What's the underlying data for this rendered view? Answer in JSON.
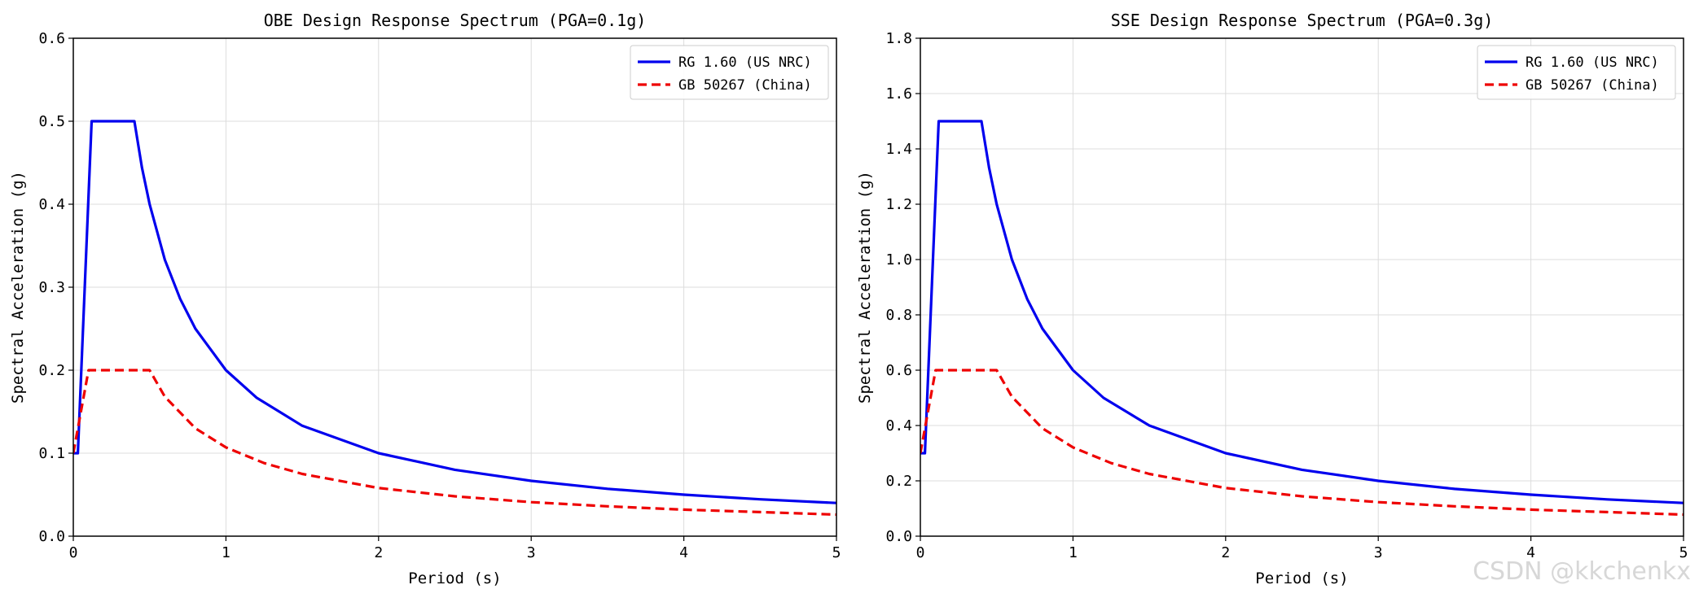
{
  "watermark": "CSDN @kkchenkx",
  "colors": {
    "rg": "#0000ee",
    "gb": "#ee0000",
    "grid": "#dcdcdc",
    "frame": "#000000"
  },
  "chart_data": [
    {
      "type": "line",
      "title": "OBE Design Response Spectrum (PGA=0.1g)",
      "xlabel": "Period (s)",
      "ylabel": "Spectral Acceleration (g)",
      "xlim": [
        0,
        5
      ],
      "ylim": [
        0,
        0.6
      ],
      "xticks": [
        0,
        1,
        2,
        3,
        4,
        5
      ],
      "xtick_labels": [
        "0",
        "1",
        "2",
        "3",
        "4",
        "5"
      ],
      "yticks": [
        0,
        0.1,
        0.2,
        0.3,
        0.4,
        0.5,
        0.6
      ],
      "ytick_labels": [
        "0.0",
        "0.1",
        "0.2",
        "0.3",
        "0.4",
        "0.5",
        "0.6"
      ],
      "grid": true,
      "legend_position": "top-right",
      "series": [
        {
          "name": "RG 1.60 (US NRC)",
          "style": "solid",
          "color": "#0000ee",
          "x": [
            0,
            0.03,
            0.12,
            0.4,
            0.45,
            0.5,
            0.6,
            0.7,
            0.8,
            1.0,
            1.2,
            1.5,
            2.0,
            2.5,
            3.0,
            3.5,
            4.0,
            4.5,
            5.0
          ],
          "y": [
            0.1,
            0.1,
            0.5,
            0.5,
            0.444,
            0.4,
            0.333,
            0.286,
            0.25,
            0.2,
            0.167,
            0.133,
            0.1,
            0.08,
            0.0667,
            0.0571,
            0.05,
            0.0444,
            0.04
          ]
        },
        {
          "name": "GB 50267 (China)",
          "style": "dashed",
          "color": "#ee0000",
          "x": [
            0,
            0.1,
            0.5,
            0.6,
            0.8,
            1.0,
            1.25,
            1.5,
            2.0,
            2.5,
            3.0,
            3.5,
            4.0,
            4.5,
            5.0
          ],
          "y": [
            0.1,
            0.2,
            0.2,
            0.168,
            0.13,
            0.107,
            0.088,
            0.075,
            0.058,
            0.048,
            0.041,
            0.036,
            0.032,
            0.029,
            0.026
          ]
        }
      ]
    },
    {
      "type": "line",
      "title": "SSE Design Response Spectrum (PGA=0.3g)",
      "xlabel": "Period (s)",
      "ylabel": "Spectral Acceleration (g)",
      "xlim": [
        0,
        5
      ],
      "ylim": [
        0,
        1.8
      ],
      "xticks": [
        0,
        1,
        2,
        3,
        4,
        5
      ],
      "xtick_labels": [
        "0",
        "1",
        "2",
        "3",
        "4",
        "5"
      ],
      "yticks": [
        0,
        0.2,
        0.4,
        0.6,
        0.8,
        1.0,
        1.2,
        1.4,
        1.6,
        1.8
      ],
      "ytick_labels": [
        "0.0",
        "0.2",
        "0.4",
        "0.6",
        "0.8",
        "1.0",
        "1.2",
        "1.4",
        "1.6",
        "1.8"
      ],
      "grid": true,
      "legend_position": "top-right",
      "series": [
        {
          "name": "RG 1.60 (US NRC)",
          "style": "solid",
          "color": "#0000ee",
          "x": [
            0,
            0.03,
            0.12,
            0.4,
            0.45,
            0.5,
            0.6,
            0.7,
            0.8,
            1.0,
            1.2,
            1.5,
            2.0,
            2.5,
            3.0,
            3.5,
            4.0,
            4.5,
            5.0
          ],
          "y": [
            0.3,
            0.3,
            1.5,
            1.5,
            1.333,
            1.2,
            1.0,
            0.857,
            0.75,
            0.6,
            0.5,
            0.4,
            0.3,
            0.24,
            0.2,
            0.171,
            0.15,
            0.133,
            0.12
          ]
        },
        {
          "name": "GB 50267 (China)",
          "style": "dashed",
          "color": "#ee0000",
          "x": [
            0,
            0.1,
            0.5,
            0.6,
            0.8,
            1.0,
            1.25,
            1.5,
            2.0,
            2.5,
            3.0,
            3.5,
            4.0,
            4.5,
            5.0
          ],
          "y": [
            0.3,
            0.6,
            0.6,
            0.504,
            0.39,
            0.321,
            0.264,
            0.225,
            0.174,
            0.144,
            0.123,
            0.108,
            0.096,
            0.087,
            0.078
          ]
        }
      ]
    }
  ]
}
